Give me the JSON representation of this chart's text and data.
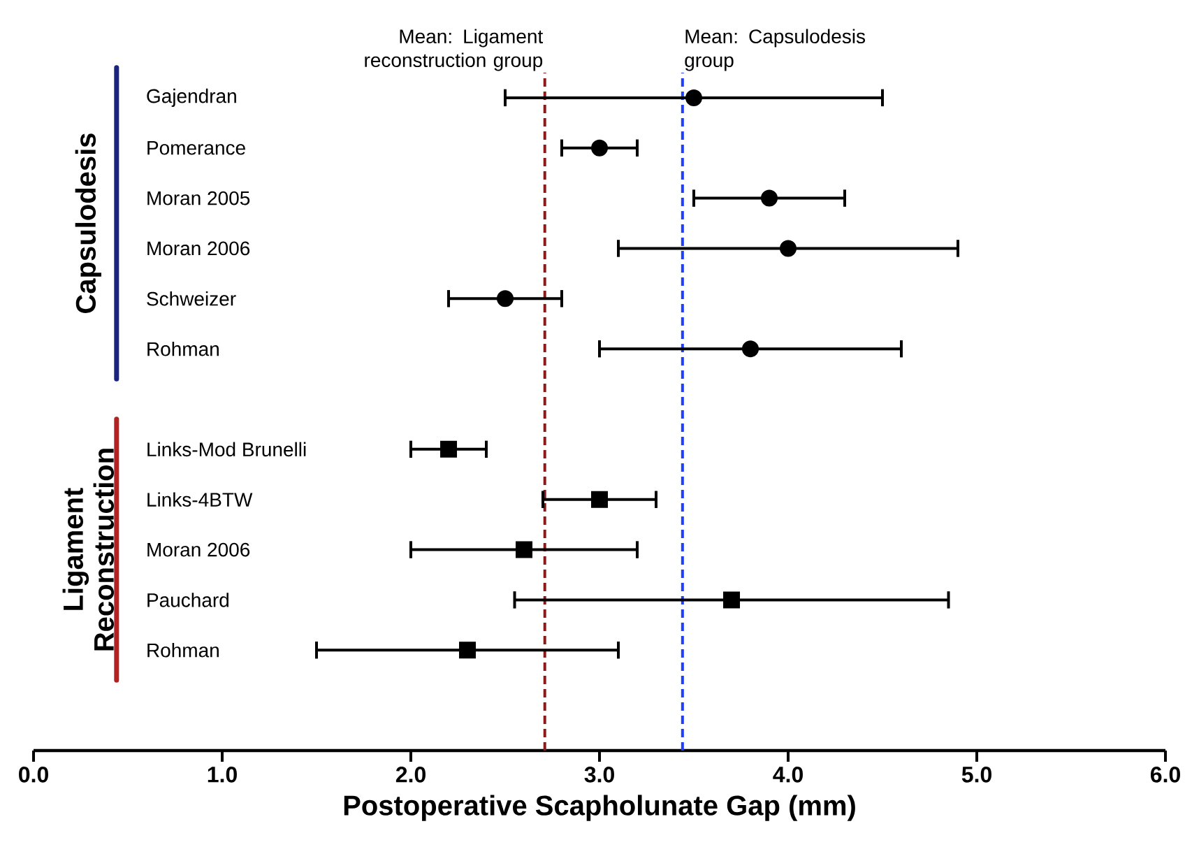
{
  "chart_data": {
    "type": "scatter",
    "orientation": "horizontal",
    "xlabel": "Postoperative Scapholunate Gap (mm)",
    "categories": [
      "Gajendran",
      "Pomerance",
      "Moran 2005",
      "Moran 2006",
      "Schweizer",
      "Rohman",
      null,
      "Links-Mod Brunelli",
      "Links-4BTW",
      "Moran 2006",
      "Pauchard",
      "Rohman"
    ],
    "series": [
      {
        "color": "#000000",
        "marker": "circle",
        "values": [
          3.5,
          3.0,
          3.9,
          4.0,
          2.5,
          3.8,
          null,
          null,
          null,
          null,
          null,
          null
        ],
        "errors": [
          [
            2.5,
            4.5
          ],
          [
            2.8,
            3.2
          ],
          [
            3.5,
            4.3
          ],
          [
            3.1,
            4.9
          ],
          [
            2.2,
            2.8
          ],
          [
            3.0,
            4.6
          ],
          null,
          null,
          null,
          null,
          null,
          null
        ]
      },
      {
        "color": "#000000",
        "marker": "square",
        "values": [
          null,
          null,
          null,
          null,
          null,
          null,
          null,
          2.2,
          3.0,
          2.6,
          3.7,
          2.3
        ],
        "errors": [
          null,
          null,
          null,
          null,
          null,
          null,
          null,
          [
            2.0,
            2.4
          ],
          [
            2.7,
            3.3
          ],
          [
            2.0,
            3.2
          ],
          [
            2.55,
            4.85
          ],
          [
            1.5,
            3.1
          ]
        ]
      }
    ],
    "xlim": [
      0,
      6
    ],
    "xticks": [
      {
        "value": 0,
        "label": "0.0"
      },
      {
        "value": 1,
        "label": "1.0"
      },
      {
        "value": 2,
        "label": "2.0"
      },
      {
        "value": 3,
        "label": "3.0"
      },
      {
        "value": 4,
        "label": "4.0"
      },
      {
        "value": 5,
        "label": "5.0"
      },
      {
        "value": 6,
        "label": "6.0"
      }
    ],
    "ref_lines": [
      {
        "axis": "x",
        "value": 2.71,
        "label": "Mean: Ligament reconstruction group",
        "color": "#8b1a1a",
        "line_style": "dashed"
      },
      {
        "axis": "x",
        "value": 3.44,
        "label": "Mean: Capsulodesis group",
        "color": "#1f3fff",
        "line_style": "dashed"
      }
    ],
    "annotations": [
      "Capsulodesis",
      "Ligament Reconstruction"
    ],
    "grid": false
  }
}
